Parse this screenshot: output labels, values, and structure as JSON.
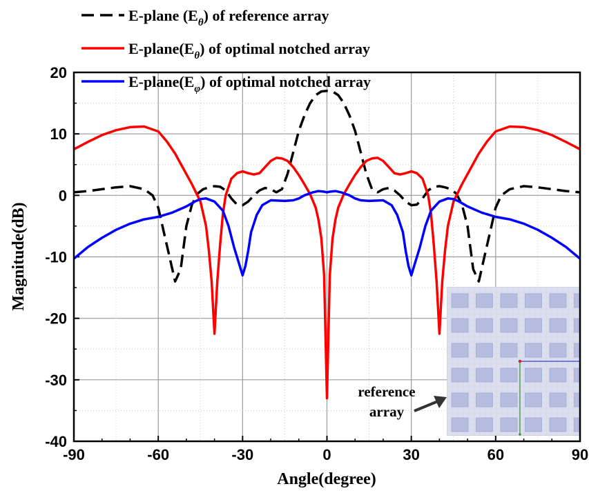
{
  "chart_data": {
    "type": "line",
    "xlabel": "Angle(degree)",
    "ylabel": "Magnitude(dB)",
    "xlim": [
      -90,
      90
    ],
    "ylim": [
      -40,
      20
    ],
    "xticks": [
      -90,
      -60,
      -30,
      0,
      30,
      60,
      90
    ],
    "yticks": [
      -40,
      -30,
      -20,
      -10,
      0,
      10,
      20
    ],
    "grid": true,
    "legend_position": "top-left",
    "series": [
      {
        "name_parts": [
          "E-plane (E",
          "θ",
          ") of reference array"
        ],
        "color": "#000000",
        "style": "dashed",
        "x": [
          -90,
          -85,
          -80,
          -75,
          -70,
          -65,
          -62,
          -60,
          -58,
          -56,
          -54,
          -52,
          -50,
          -48,
          -46,
          -44,
          -42,
          -40,
          -38,
          -36,
          -34,
          -32,
          -30,
          -28,
          -26,
          -24,
          -22,
          -20,
          -18,
          -16,
          -14,
          -12,
          -10,
          -8,
          -6,
          -4,
          -2,
          0,
          2,
          4,
          6,
          8,
          10,
          12,
          14,
          16,
          18,
          20,
          22,
          24,
          26,
          28,
          30,
          32,
          34,
          36,
          38,
          40,
          42,
          44,
          46,
          48,
          50,
          52,
          54,
          56,
          58,
          60,
          62,
          65,
          70,
          75,
          80,
          85,
          90
        ],
        "y": [
          0.5,
          0.7,
          1.0,
          1.3,
          1.5,
          1.0,
          0,
          -2,
          -6,
          -10,
          -14,
          -12,
          -5,
          -1.5,
          0.3,
          1.0,
          1.3,
          1.5,
          1.4,
          0.8,
          -0.5,
          -1.5,
          -1.6,
          -1.0,
          0,
          0.8,
          1.2,
          1.0,
          0.5,
          1.0,
          3.5,
          7.0,
          10.5,
          13.0,
          15.0,
          16.3,
          16.9,
          17.0,
          16.9,
          16.3,
          15.0,
          13.0,
          10.5,
          7.0,
          3.5,
          1.0,
          0.5,
          1.0,
          1.2,
          0.8,
          0,
          -1.0,
          -1.6,
          -1.5,
          -0.5,
          0.8,
          1.4,
          1.5,
          1.3,
          1.0,
          0.3,
          -1.5,
          -5,
          -12,
          -14,
          -10,
          -6,
          -2,
          0,
          1.0,
          1.5,
          1.3,
          1.0,
          0.7,
          0.5
        ]
      },
      {
        "name_parts": [
          "E-plane(E",
          "θ",
          ") of optimal notched array"
        ],
        "color": "#ff0000",
        "style": "solid",
        "x": [
          -90,
          -85,
          -80,
          -75,
          -70,
          -65,
          -60,
          -57,
          -54,
          -51,
          -48,
          -45,
          -43,
          -42,
          -41,
          -40,
          -39,
          -38,
          -37,
          -36,
          -34,
          -32,
          -30,
          -28,
          -26,
          -24,
          -22,
          -20,
          -18,
          -16,
          -14,
          -12,
          -10,
          -8,
          -6,
          -4,
          -3,
          -2,
          -1,
          0,
          1,
          2,
          3,
          4,
          6,
          8,
          10,
          12,
          14,
          16,
          18,
          20,
          22,
          24,
          26,
          28,
          30,
          32,
          34,
          36,
          37,
          38,
          39,
          40,
          41,
          42,
          43,
          45,
          48,
          51,
          54,
          57,
          60,
          65,
          70,
          75,
          80,
          85,
          90
        ],
        "y": [
          7.5,
          8.7,
          9.8,
          10.6,
          11.1,
          11.2,
          10.4,
          8.8,
          6.8,
          4.3,
          1.8,
          -1.0,
          -5,
          -9,
          -14,
          -22.5,
          -14,
          -8,
          -3,
          0,
          2.7,
          3.6,
          3.9,
          3.6,
          3.4,
          3.6,
          4.6,
          5.6,
          6.1,
          6.0,
          5.6,
          4.6,
          3.3,
          1.8,
          0.2,
          -2.0,
          -4,
          -7,
          -13,
          -33,
          -13,
          -7,
          -4,
          -2.0,
          0.2,
          1.8,
          3.3,
          4.6,
          5.6,
          6.0,
          6.1,
          5.6,
          4.6,
          3.6,
          3.4,
          3.6,
          3.9,
          3.6,
          2.7,
          0,
          -3,
          -8,
          -14,
          -22.5,
          -14,
          -9,
          -5,
          -1.0,
          1.8,
          4.3,
          6.8,
          8.8,
          10.4,
          11.2,
          11.1,
          10.6,
          9.8,
          8.7,
          7.5
        ]
      },
      {
        "name_parts": [
          "E-plane(E",
          "φ",
          ") of optimal notched array"
        ],
        "color": "#0000ff",
        "style": "solid",
        "x": [
          -90,
          -85,
          -80,
          -75,
          -70,
          -65,
          -60,
          -55,
          -50,
          -47,
          -45,
          -43,
          -40,
          -37,
          -35,
          -33,
          -31,
          -30,
          -29,
          -28,
          -27,
          -25,
          -23,
          -20,
          -15,
          -12,
          -10,
          -8,
          -5,
          -3,
          -1,
          0,
          1,
          3,
          5,
          8,
          10,
          12,
          15,
          20,
          23,
          25,
          27,
          28,
          29,
          30,
          31,
          33,
          35,
          37,
          40,
          43,
          45,
          47,
          50,
          55,
          60,
          65,
          70,
          75,
          80,
          85,
          90
        ],
        "y": [
          -10.3,
          -8.4,
          -6.9,
          -5.6,
          -4.6,
          -3.9,
          -3.5,
          -2.8,
          -1.8,
          -1.0,
          -0.6,
          -0.5,
          -1.0,
          -2.5,
          -5.0,
          -8.5,
          -11.5,
          -13,
          -11.5,
          -9,
          -6,
          -3.2,
          -1.6,
          -0.8,
          -0.9,
          -0.8,
          -0.5,
          0,
          0.5,
          0.7,
          0.6,
          0.5,
          0.6,
          0.7,
          0.5,
          0,
          -0.5,
          -0.8,
          -0.9,
          -0.8,
          -1.6,
          -3.2,
          -6,
          -9,
          -11.5,
          -13,
          -11.5,
          -8.5,
          -5.0,
          -2.5,
          -1.0,
          -0.5,
          -0.6,
          -1.0,
          -1.8,
          -2.8,
          -3.5,
          -3.9,
          -4.6,
          -5.6,
          -6.9,
          -8.4,
          -10.3
        ]
      }
    ],
    "inset": {
      "label_line1": "reference",
      "label_line2": "array",
      "background": "#dcdfee",
      "patch_color": "#b6bde0"
    }
  }
}
